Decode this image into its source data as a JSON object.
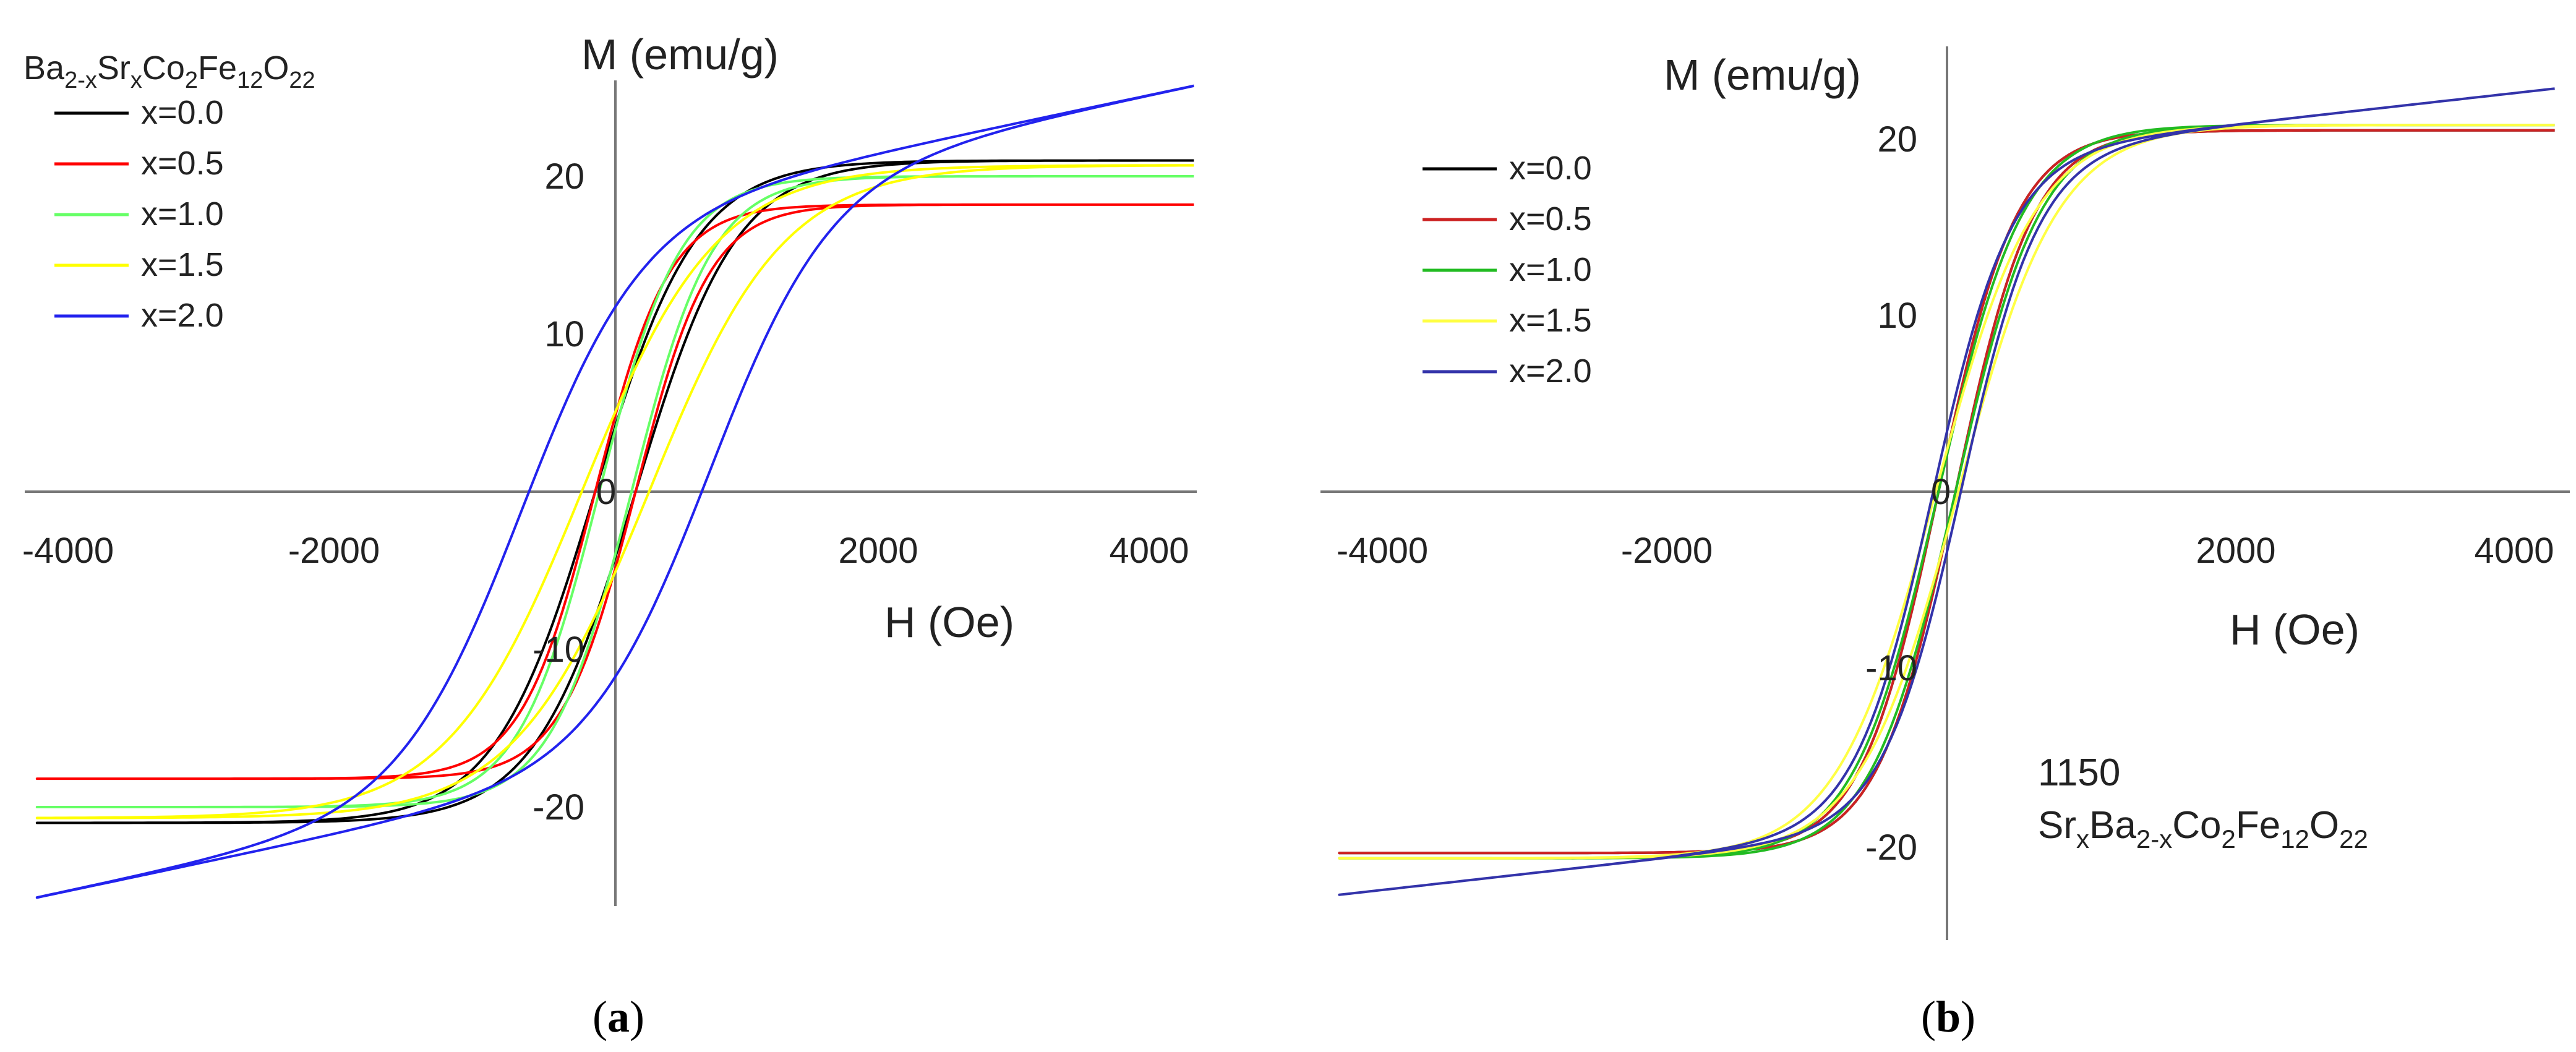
{
  "chart_data": [
    {
      "type": "line",
      "panel": "a",
      "caption_open": "(",
      "caption_letter": "a",
      "caption_close": ")",
      "xlabel": "H (Oe)",
      "ylabel": "M (emu/g)",
      "xlim": [
        -4300,
        4300
      ],
      "ylim": [
        -26,
        26
      ],
      "xticks": [
        -4000,
        -2000,
        0,
        2000,
        4000
      ],
      "yticks": [
        -20,
        -10,
        0,
        10,
        20
      ],
      "xtick_labels": [
        "-4000",
        "-2000",
        "0",
        "2000",
        "4000"
      ],
      "ytick_labels": [
        "-20",
        "-10",
        "0",
        "10",
        "20"
      ],
      "legend_title": {
        "base1": "Ba",
        "sub1": "2-x",
        "base2": "Sr",
        "sub2": "x",
        "base3": "Co",
        "sub3": "2",
        "base4": "Fe",
        "sub4": "12",
        "base5": "O",
        "sub5": "22"
      },
      "legend_position": "top-left",
      "series": [
        {
          "name": "x=0.0",
          "color": "#000000",
          "hc": 150,
          "ms": 21.0,
          "hk": 750,
          "mr": 3.0,
          "chi": 0.0
        },
        {
          "name": "x=0.5",
          "color": "#ff0000",
          "hc": 150,
          "ms": 18.2,
          "hk": 550,
          "mr": 3.0,
          "chi": 0.0
        },
        {
          "name": "x=1.0",
          "color": "#66ff66",
          "hc": 120,
          "ms": 20.0,
          "hk": 600,
          "mr": 3.5,
          "chi": 0.0
        },
        {
          "name": "x=1.5",
          "color": "#ffff00",
          "hc": 250,
          "ms": 20.7,
          "hk": 1000,
          "mr": 3.5,
          "chi": 0.0
        },
        {
          "name": "x=2.0",
          "color": "#2222ee",
          "hc": 700,
          "ms": 18.0,
          "hk": 900,
          "mr": 12.5,
          "chi": 0.0018
        }
      ]
    },
    {
      "type": "line",
      "panel": "b",
      "caption_open": "(",
      "caption_letter": "b",
      "caption_close": ")",
      "xlabel": "H (Oe)",
      "ylabel": "M (emu/g)",
      "xlim": [
        -4300,
        4300
      ],
      "ylim": [
        -25,
        25
      ],
      "xticks": [
        -4000,
        -2000,
        0,
        2000,
        4000
      ],
      "yticks": [
        -20,
        -10,
        0,
        10,
        20
      ],
      "xtick_labels": [
        "-4000",
        "-2000",
        "0",
        "2000",
        "4000"
      ],
      "ytick_labels": [
        "-20",
        "-10",
        "0",
        "10",
        "20"
      ],
      "legend_position": "top-left",
      "annotation_line1": "1150",
      "annotation_line2": {
        "base1": "Sr",
        "sub1": "x",
        "base2": "Ba",
        "sub2": "2-x",
        "base3": "Co",
        "sub3": "2",
        "base4": "Fe",
        "sub4": "12",
        "base5": "O",
        "sub5": "22"
      },
      "series": [
        {
          "name": "x=0.0",
          "color": "#000000",
          "hc": 60,
          "ms": 20.5,
          "hk": 550,
          "mr": 1.5,
          "chi": 0.0
        },
        {
          "name": "x=0.5",
          "color": "#cc2222",
          "hc": 60,
          "ms": 20.5,
          "hk": 550,
          "mr": 1.5,
          "chi": 0.0
        },
        {
          "name": "x=1.0",
          "color": "#22bb22",
          "hc": 60,
          "ms": 20.8,
          "hk": 600,
          "mr": 1.5,
          "chi": 0.0
        },
        {
          "name": "x=1.5",
          "color": "#ffff44",
          "hc": 80,
          "ms": 20.8,
          "hk": 700,
          "mr": 1.5,
          "chi": 0.0
        },
        {
          "name": "x=2.0",
          "color": "#3333aa",
          "hc": 100,
          "ms": 19.0,
          "hk": 550,
          "mr": 4.0,
          "chi": 0.0009
        }
      ]
    }
  ]
}
